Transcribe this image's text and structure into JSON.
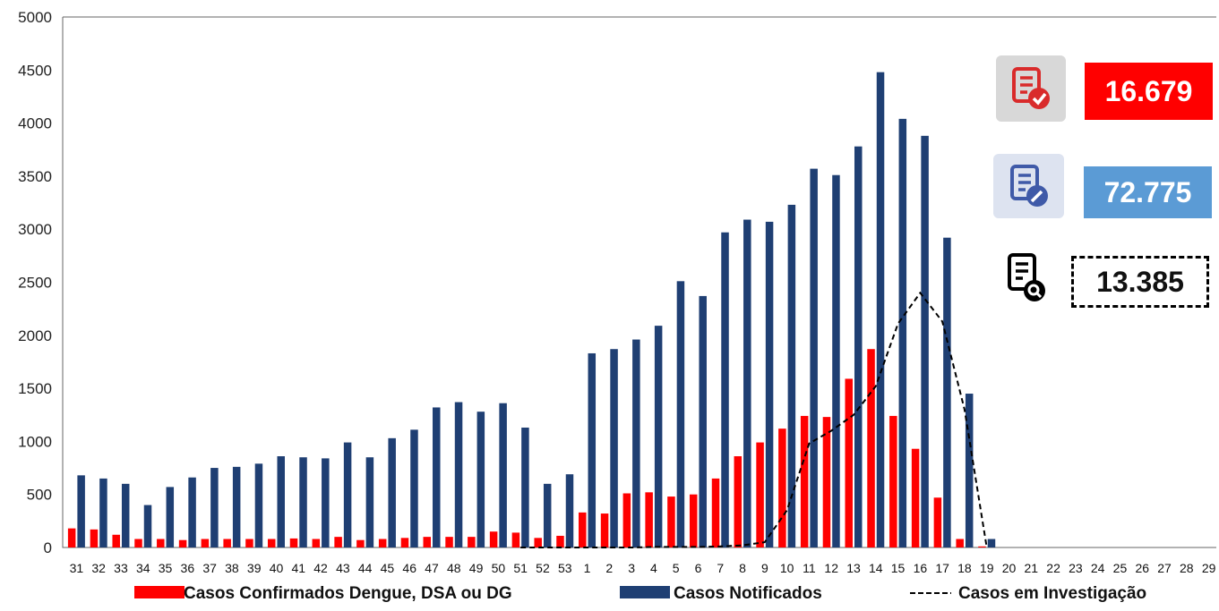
{
  "chart_data": {
    "type": "bar",
    "ylim": [
      0,
      5000
    ],
    "yticks": [
      "0",
      "500",
      "1000",
      "1500",
      "2000",
      "2500",
      "3000",
      "3500",
      "4000",
      "4500",
      "5000"
    ],
    "categories": [
      "31",
      "32",
      "33",
      "34",
      "35",
      "36",
      "37",
      "38",
      "39",
      "40",
      "41",
      "42",
      "43",
      "44",
      "45",
      "46",
      "47",
      "48",
      "49",
      "50",
      "51",
      "52",
      "53",
      "1",
      "2",
      "3",
      "4",
      "5",
      "6",
      "7",
      "8",
      "9",
      "10",
      "11",
      "12",
      "13",
      "14",
      "15",
      "16",
      "17",
      "18",
      "19",
      "20",
      "21",
      "22",
      "23",
      "24",
      "25",
      "26",
      "27",
      "28",
      "29"
    ],
    "series": [
      {
        "name": "Casos Confirmados Dengue, DSA ou DG",
        "kind": "bar",
        "color": "#ff0000",
        "values": [
          180,
          170,
          120,
          80,
          80,
          70,
          80,
          80,
          80,
          80,
          85,
          80,
          100,
          70,
          80,
          90,
          100,
          100,
          100,
          150,
          140,
          90,
          110,
          330,
          320,
          510,
          520,
          480,
          500,
          650,
          860,
          990,
          1120,
          1240,
          1230,
          1590,
          1870,
          1240,
          930,
          470,
          80,
          10,
          null,
          null,
          null,
          null,
          null,
          null,
          null,
          null,
          null,
          null
        ]
      },
      {
        "name": "Casos Notificados",
        "kind": "bar",
        "color": "#1f3f73",
        "values": [
          680,
          650,
          600,
          400,
          570,
          660,
          750,
          760,
          790,
          860,
          850,
          840,
          990,
          850,
          1030,
          1110,
          1320,
          1370,
          1280,
          1360,
          1130,
          600,
          690,
          1830,
          1870,
          1960,
          2090,
          2510,
          2370,
          2970,
          3090,
          3070,
          3230,
          3570,
          3510,
          3780,
          4480,
          4040,
          3880,
          2920,
          1450,
          80,
          null,
          null,
          null,
          null,
          null,
          null,
          null,
          null,
          null,
          null
        ]
      },
      {
        "name": "Casos em Investigação",
        "kind": "line",
        "style": "dashed",
        "color": "#000000",
        "values": [
          null,
          null,
          null,
          null,
          null,
          null,
          null,
          null,
          null,
          null,
          null,
          null,
          null,
          null,
          null,
          null,
          null,
          null,
          null,
          null,
          0,
          0,
          0,
          0,
          0,
          0,
          5,
          5,
          5,
          10,
          20,
          50,
          350,
          980,
          1100,
          1250,
          1520,
          2110,
          2400,
          2130,
          1300,
          0,
          null,
          null,
          null,
          null,
          null,
          null,
          null,
          null,
          null,
          null
        ]
      }
    ]
  },
  "kpis": {
    "confirmed": {
      "icon": "document-check-icon",
      "value": "16.679",
      "bg": "#ff0000",
      "icon_bg": "#d8d8d8",
      "icon_color": "#d92b2b"
    },
    "notified": {
      "icon": "document-edit-icon",
      "value": "72.775",
      "bg": "#5b9bd5",
      "icon_bg": "#dde3f0",
      "icon_color": "#3f5aa8"
    },
    "investigation": {
      "icon": "document-search-icon",
      "value": "13.385",
      "border": "#000000"
    }
  }
}
